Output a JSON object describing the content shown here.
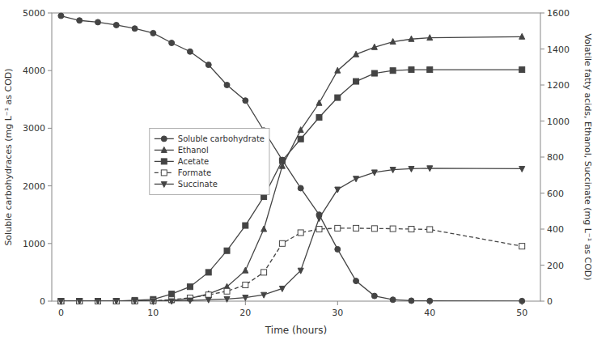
{
  "chart_data": {
    "type": "line",
    "x": [
      0,
      2,
      4,
      6,
      8,
      10,
      12,
      14,
      16,
      18,
      20,
      22,
      24,
      26,
      28,
      30,
      32,
      34,
      36,
      38,
      40,
      50
    ],
    "series": [
      {
        "name": "Soluble carbohydrate",
        "color": "#444444",
        "marker": "circle",
        "line_style": "solid",
        "values": [
          4950,
          4870,
          4840,
          4790,
          4730,
          4650,
          4480,
          4330,
          4100,
          3750,
          3480,
          2960,
          2450,
          1960,
          1500,
          900,
          350,
          90,
          25,
          8,
          4,
          2
        ]
      },
      {
        "name": "Ethanol",
        "color": "#444444",
        "marker": "triangle-up",
        "line_style": "solid",
        "axis": "y2",
        "values": [
          0,
          0,
          0,
          0,
          0,
          0,
          5,
          15,
          40,
          80,
          170,
          400,
          750,
          950,
          1100,
          1280,
          1370,
          1410,
          1440,
          1455,
          1462,
          1468
        ]
      },
      {
        "name": "Acetate",
        "color": "#444444",
        "marker": "square",
        "line_style": "solid",
        "axis": "y2",
        "values": [
          0,
          0,
          0,
          0,
          5,
          10,
          40,
          80,
          160,
          280,
          420,
          580,
          780,
          900,
          1020,
          1130,
          1220,
          1265,
          1280,
          1285,
          1285,
          1285
        ]
      },
      {
        "name": "Formate",
        "color": "#444444",
        "marker": "open-square",
        "line_style": "dashed",
        "axis": "y2",
        "values": [
          0,
          0,
          0,
          0,
          0,
          2,
          8,
          18,
          35,
          55,
          90,
          160,
          320,
          380,
          400,
          405,
          405,
          403,
          402,
          400,
          398,
          305
        ]
      },
      {
        "name": "Succinate",
        "color": "#444444",
        "marker": "triangle-down",
        "line_style": "solid",
        "axis": "y2",
        "values": [
          0,
          0,
          0,
          0,
          0,
          0,
          0,
          4,
          8,
          12,
          20,
          35,
          70,
          170,
          460,
          620,
          680,
          715,
          730,
          735,
          738,
          735
        ]
      }
    ],
    "xlabel": "Time (hours)",
    "ylabel": "Soluble carbohydraces (mg L⁻¹ as COD)",
    "y2label": "Volatile fatty acids, Ethanol, Succinate (mg L⁻¹ as COD)",
    "xlim": [
      -1,
      52
    ],
    "ylim": [
      0,
      5000
    ],
    "y2lim": [
      0,
      1600
    ],
    "xticks": [
      0,
      10,
      20,
      30,
      40,
      50
    ],
    "yticks": [
      0,
      1000,
      2000,
      3000,
      4000,
      5000
    ],
    "y2ticks": [
      0,
      200,
      400,
      600,
      800,
      1000,
      1200,
      1400,
      1600
    ],
    "grid": false,
    "legend": "upper left"
  }
}
